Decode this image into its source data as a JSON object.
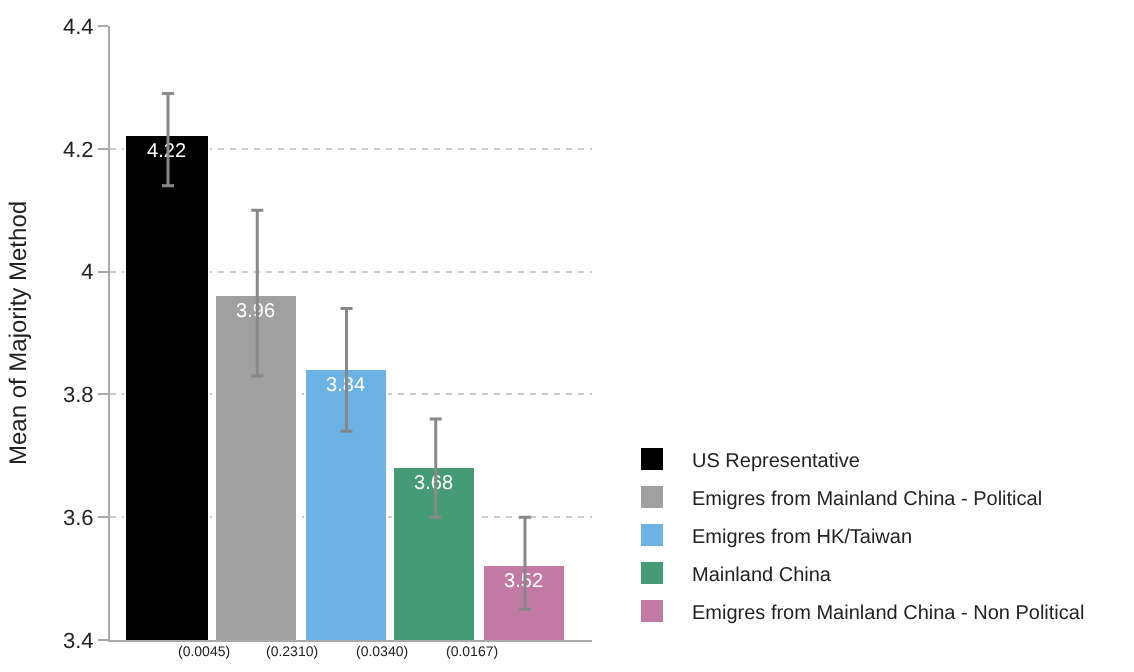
{
  "chart_data": {
    "type": "bar",
    "ylabel": "Mean of Majority Method",
    "categories": [
      null,
      null,
      null,
      null,
      null
    ],
    "series": [
      {
        "name": "US Representative",
        "color": "#000000",
        "values": [
          4.22,
          null,
          null,
          null,
          null
        ],
        "errors": [
          [
            4.14,
            4.29
          ],
          null,
          null,
          null,
          null
        ]
      },
      {
        "name": "Emigres from Mainland China - Political",
        "color": "#a0a0a0",
        "values": [
          null,
          3.96,
          null,
          null,
          null
        ],
        "errors": [
          null,
          [
            3.83,
            4.1
          ],
          null,
          null,
          null
        ]
      },
      {
        "name": "Emigres from HK/Taiwan",
        "color": "#6cb2e4",
        "values": [
          null,
          null,
          3.84,
          null,
          null
        ],
        "errors": [
          null,
          null,
          [
            3.74,
            3.94
          ],
          null,
          null
        ]
      },
      {
        "name": "Mainland China",
        "color": "#469b77",
        "values": [
          null,
          null,
          null,
          3.68,
          null
        ],
        "errors": [
          null,
          null,
          null,
          [
            3.6,
            3.76
          ],
          null
        ]
      },
      {
        "name": "Emigres from Mainland China - Non Political",
        "color": "#c27aa4",
        "values": [
          null,
          null,
          null,
          null,
          3.52
        ],
        "errors": [
          null,
          null,
          null,
          null,
          [
            3.45,
            3.6
          ]
        ]
      }
    ],
    "annotations": [
      "(0.0045)",
      "(0.2310)",
      "(0.0340)",
      "(0.0167)"
    ],
    "ylim": [
      3.4,
      4.4
    ],
    "yticks": [
      3.4,
      3.6,
      3.8,
      {
        "value": 4,
        "label": "4"
      },
      4.2,
      4.4
    ],
    "data_labels": true,
    "grid": "y",
    "legend": "bottom right"
  }
}
